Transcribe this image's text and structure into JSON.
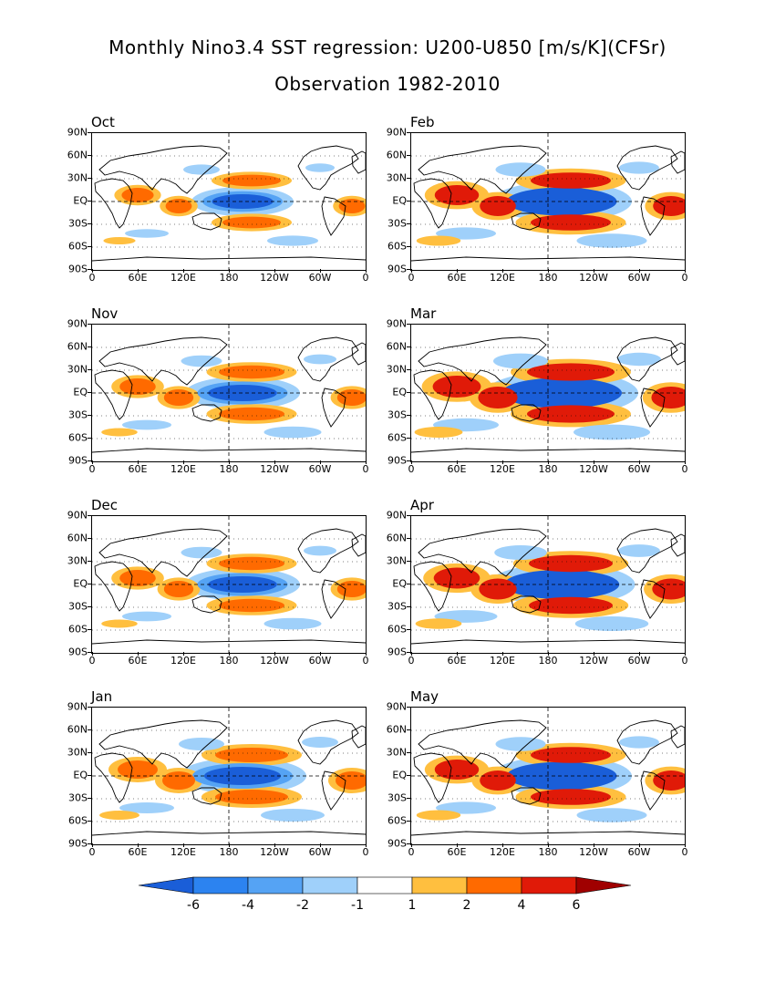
{
  "title": "Monthly Nino3.4 SST regression: U200-U850 [m/s/K](CFSr)",
  "subtitle": "Observation 1982-2010",
  "y_tick_labels": [
    "90N",
    "60N",
    "30N",
    "EQ",
    "30S",
    "60S",
    "90S"
  ],
  "x_tick_labels": [
    "0",
    "60E",
    "120E",
    "180",
    "120W",
    "60W",
    "0"
  ],
  "panels": [
    {
      "label": "Oct",
      "col": 0,
      "row": 0,
      "strength": 0.8
    },
    {
      "label": "Feb",
      "col": 1,
      "row": 0,
      "strength": 1.1
    },
    {
      "label": "Nov",
      "col": 0,
      "row": 1,
      "strength": 0.9
    },
    {
      "label": "Mar",
      "col": 1,
      "row": 1,
      "strength": 1.2
    },
    {
      "label": "Dec",
      "col": 0,
      "row": 2,
      "strength": 0.9
    },
    {
      "label": "Apr",
      "col": 1,
      "row": 2,
      "strength": 1.15
    },
    {
      "label": "Jan",
      "col": 0,
      "row": 3,
      "strength": 1.0
    },
    {
      "label": "May",
      "col": 1,
      "row": 3,
      "strength": 1.1
    }
  ],
  "colorbar": {
    "labels": [
      "-6",
      "-4",
      "-2",
      "-1",
      "1",
      "2",
      "4",
      "6"
    ],
    "colors": [
      "#1a5ed8",
      "#2c83f0",
      "#55a3f4",
      "#9fd0fa",
      "#ffffff",
      "#ffbf3f",
      "#ff6a00",
      "#e01a08",
      "#a00000"
    ]
  },
  "colors": {
    "neg_strong": "#1a5ed8",
    "neg_mid": "#55a3f4",
    "neg_weak": "#9fd0fa",
    "pos_weak": "#ffbf3f",
    "pos_mid": "#ff6a00",
    "pos_strong": "#e01a08"
  }
}
